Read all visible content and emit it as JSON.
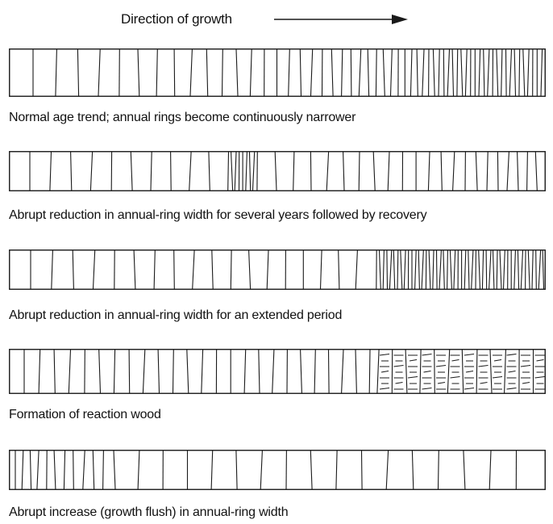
{
  "header": {
    "title": "Direction of growth"
  },
  "panels": [
    {
      "caption": "Normal age trend; annual rings become continuously narrower"
    },
    {
      "caption": "Abrupt reduction in annual-ring width for several years followed by recovery"
    },
    {
      "caption": "Abrupt reduction in annual-ring width for an extended period"
    },
    {
      "caption": "Formation of reaction wood"
    },
    {
      "caption": "Abrupt increase (growth flush) in annual-ring width"
    }
  ],
  "colors": {
    "line": "#1a1a1a",
    "background": "#ffffff"
  }
}
